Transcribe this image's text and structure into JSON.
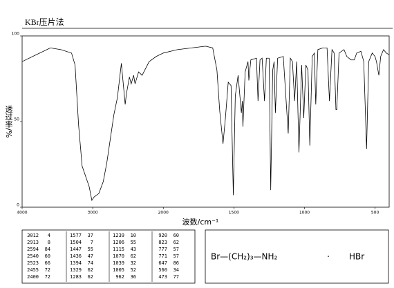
{
  "chart_data": {
    "type": "line",
    "title": "KBr压片法",
    "x_label": "波数/cm⁻¹",
    "y_label": "透过率/%",
    "color": "#000000",
    "xlim": [
      4000,
      400
    ],
    "xticks": [
      4000,
      3000,
      2000,
      1500,
      1000,
      500
    ],
    "ylim": [
      0,
      100
    ],
    "yticks": [
      0,
      50,
      100
    ],
    "x": [
      4000,
      3800,
      3600,
      3450,
      3300,
      3250,
      3200,
      3150,
      3100,
      3050,
      3012,
      2980,
      2913,
      2850,
      2800,
      2750,
      2700,
      2650,
      2594,
      2540,
      2523,
      2480,
      2455,
      2420,
      2400,
      2350,
      2300,
      2200,
      2100,
      2000,
      1900,
      1800,
      1700,
      1650,
      1620,
      1600,
      1577,
      1560,
      1540,
      1520,
      1504,
      1490,
      1470,
      1447,
      1440,
      1436,
      1420,
      1400,
      1394,
      1380,
      1340,
      1329,
      1315,
      1300,
      1283,
      1270,
      1250,
      1239,
      1225,
      1215,
      1206,
      1190,
      1150,
      1115,
      1100,
      1085,
      1070,
      1055,
      1039,
      1020,
      1005,
      990,
      975,
      962,
      945,
      930,
      920,
      905,
      870,
      840,
      823,
      805,
      790,
      777,
      771,
      755,
      720,
      700,
      670,
      647,
      630,
      600,
      580,
      560,
      545,
      520,
      500,
      490,
      473,
      460,
      440,
      420,
      400
    ],
    "values": [
      85,
      89,
      93,
      92,
      90,
      83,
      48,
      24,
      18,
      12,
      4,
      6,
      8,
      15,
      26,
      40,
      54,
      64,
      84,
      60,
      66,
      76,
      72,
      77,
      72,
      79,
      77,
      85,
      88,
      90,
      92,
      93,
      94,
      93,
      80,
      56,
      37,
      52,
      73,
      71,
      7,
      65,
      77,
      55,
      62,
      47,
      79,
      85,
      74,
      86,
      87,
      62,
      86,
      87,
      62,
      87,
      87,
      10,
      80,
      85,
      55,
      87,
      88,
      43,
      87,
      85,
      62,
      85,
      32,
      83,
      52,
      83,
      80,
      36,
      88,
      90,
      60,
      92,
      93,
      93,
      62,
      92,
      90,
      57,
      57,
      90,
      92,
      88,
      86,
      86,
      90,
      91,
      85,
      34,
      85,
      90,
      88,
      85,
      77,
      88,
      92,
      90,
      89
    ]
  },
  "peak_table": [
    [
      [
        3012,
        4
      ],
      [
        2913,
        8
      ],
      [
        2594,
        84
      ],
      [
        2540,
        60
      ],
      [
        2523,
        66
      ],
      [
        2455,
        72
      ],
      [
        2400,
        72
      ]
    ],
    [
      [
        1577,
        37
      ],
      [
        1504,
        7
      ],
      [
        1447,
        55
      ],
      [
        1436,
        47
      ],
      [
        1394,
        74
      ],
      [
        1329,
        62
      ],
      [
        1283,
        62
      ]
    ],
    [
      [
        1239,
        10
      ],
      [
        1206,
        55
      ],
      [
        1115,
        43
      ],
      [
        1070,
        62
      ],
      [
        1039,
        32
      ],
      [
        1005,
        52
      ],
      [
        962,
        36
      ]
    ],
    [
      [
        920,
        60
      ],
      [
        823,
        62
      ],
      [
        777,
        57
      ],
      [
        771,
        57
      ],
      [
        647,
        86
      ],
      [
        560,
        34
      ],
      [
        473,
        77
      ]
    ]
  ],
  "structure": {
    "formula": "Br—(CH₂)₃—NH₂",
    "salt": "HBr"
  }
}
